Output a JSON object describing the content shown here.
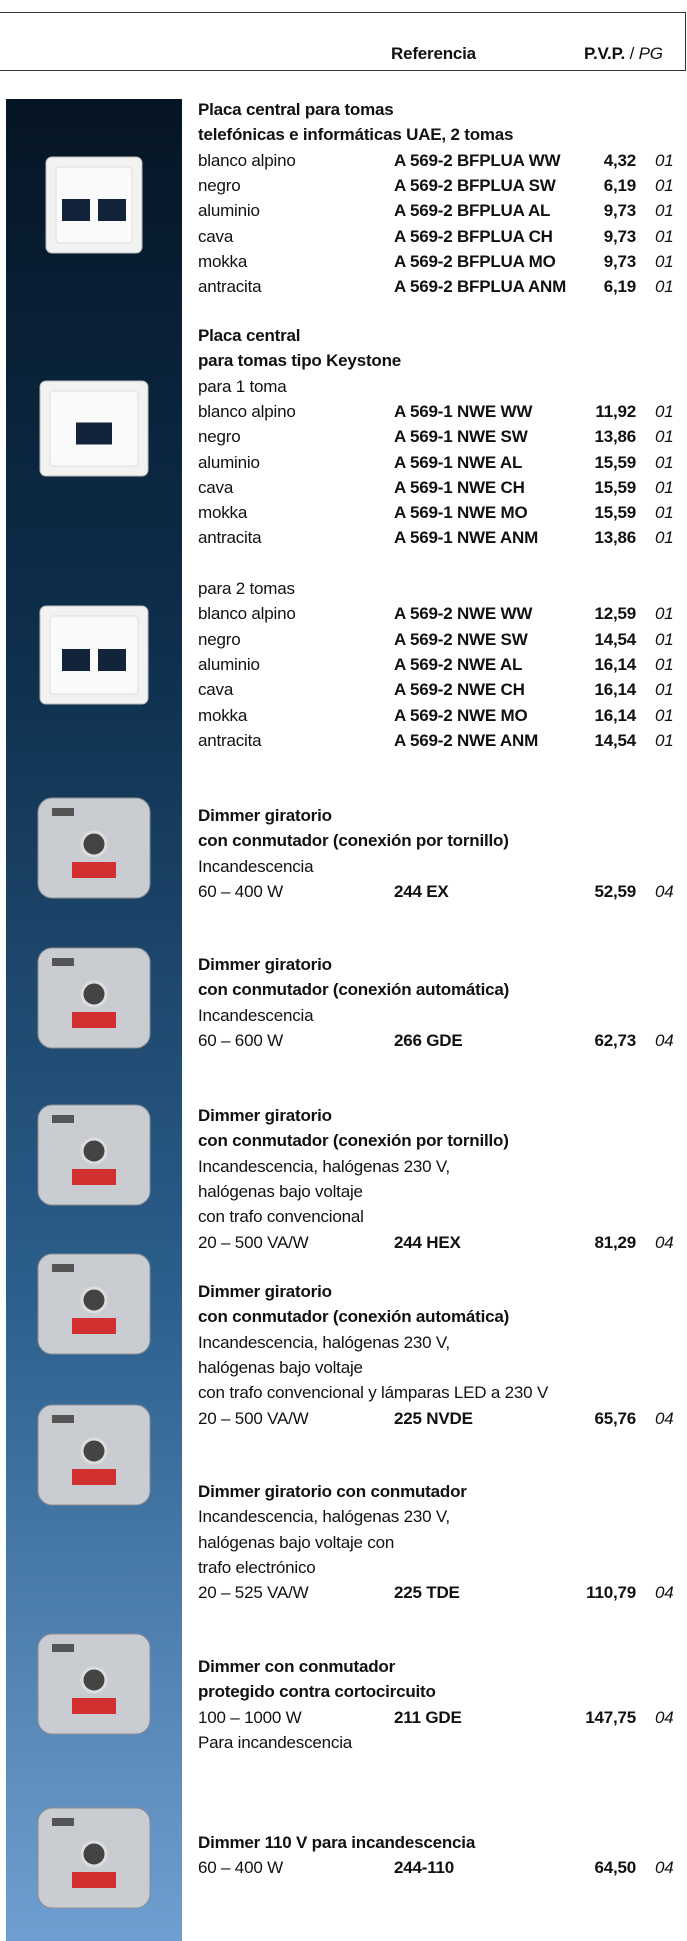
{
  "header": {
    "reference_label": "Referencia",
    "price_label": "P.V.P.",
    "pg_label": "PG"
  },
  "products": [
    {
      "title": [
        "Placa central para tomas",
        "telefónicas e informáticas UAE, 2 tomas"
      ],
      "desc": [],
      "rows": [
        [
          "blanco alpino",
          "A 569-2 BFPLUA WW",
          "4,32",
          "01"
        ],
        [
          "negro",
          "A 569-2 BFPLUA SW",
          "6,19",
          "01"
        ],
        [
          "aluminio",
          "A 569-2 BFPLUA AL",
          "9,73",
          "01"
        ],
        [
          "cava",
          "A 569-2 BFPLUA CH",
          "9,73",
          "01"
        ],
        [
          "mokka",
          "A 569-2 BFPLUA MO",
          "9,73",
          "01"
        ],
        [
          "antracita",
          "A 569-2 BFPLUA ANM",
          "6,19",
          "01"
        ]
      ],
      "note": []
    },
    {
      "title": [
        "Placa central",
        "para tomas tipo Keystone"
      ],
      "desc": [
        "para 1 toma"
      ],
      "rows": [
        [
          "blanco alpino",
          "A 569-1 NWE WW",
          "11,92",
          "01"
        ],
        [
          "negro",
          "A 569-1 NWE SW",
          "13,86",
          "01"
        ],
        [
          "aluminio",
          "A 569-1 NWE AL",
          "15,59",
          "01"
        ],
        [
          "cava",
          "A 569-1 NWE CH",
          "15,59",
          "01"
        ],
        [
          "mokka",
          "A 569-1 NWE MO",
          "15,59",
          "01"
        ],
        [
          "antracita",
          "A 569-1 NWE ANM",
          "13,86",
          "01"
        ]
      ],
      "note": []
    },
    {
      "title": [],
      "desc": [
        "para 2 tomas"
      ],
      "rows": [
        [
          "blanco alpino",
          "A 569-2 NWE WW",
          "12,59",
          "01"
        ],
        [
          "negro",
          "A 569-2 NWE SW",
          "14,54",
          "01"
        ],
        [
          "aluminio",
          "A 569-2 NWE AL",
          "16,14",
          "01"
        ],
        [
          "cava",
          "A 569-2 NWE CH",
          "16,14",
          "01"
        ],
        [
          "mokka",
          "A 569-2 NWE MO",
          "16,14",
          "01"
        ],
        [
          "antracita",
          "A 569-2 NWE ANM",
          "14,54",
          "01"
        ]
      ],
      "note": []
    },
    {
      "title": [
        "Dimmer giratorio",
        "con conmutador (conexión por tornillo)"
      ],
      "desc": [
        "Incandescencia"
      ],
      "rows": [
        [
          "60 – 400 W",
          "244 EX",
          "52,59",
          "04"
        ]
      ],
      "note": []
    },
    {
      "title": [
        "Dimmer giratorio",
        "con conmutador (conexión automática)"
      ],
      "desc": [
        "Incandescencia"
      ],
      "rows": [
        [
          "60 – 600 W",
          "266 GDE",
          "62,73",
          "04"
        ]
      ],
      "note": []
    },
    {
      "title": [
        "Dimmer giratorio",
        "con conmutador (conexión por tornillo)"
      ],
      "desc": [
        "Incandescencia, halógenas 230 V,",
        "halógenas bajo voltaje",
        "con trafo convencional"
      ],
      "rows": [
        [
          "20 – 500 VA/W",
          "244 HEX",
          "81,29",
          "04"
        ]
      ],
      "note": []
    },
    {
      "title": [
        "Dimmer giratorio",
        "con conmutador (conexión automática)"
      ],
      "desc": [
        "Incandescencia, halógenas 230 V,",
        "halógenas bajo voltaje",
        "con trafo convencional y lámparas LED a 230 V"
      ],
      "rows": [
        [
          "20 – 500 VA/W",
          "225 NVDE",
          "65,76",
          "04"
        ]
      ],
      "note": []
    },
    {
      "title": [
        "Dimmer giratorio con conmutador"
      ],
      "desc": [
        "Incandescencia, halógenas 230 V,",
        "halógenas bajo voltaje con",
        "trafo electrónico"
      ],
      "rows": [
        [
          "20 – 525 VA/W",
          "225 TDE",
          "110,79",
          "04"
        ]
      ],
      "note": []
    },
    {
      "title": [
        "Dimmer con conmutador",
        "protegido contra cortocircuito"
      ],
      "desc": [],
      "rows": [
        [
          "100 – 1000 W",
          "211 GDE",
          "147,75",
          "04"
        ]
      ],
      "note": [
        "Para incandescencia"
      ]
    },
    {
      "title": [
        "Dimmer 110 V para incandescencia"
      ],
      "desc": [],
      "rows": [
        [
          "60 – 400 W",
          "244-110",
          "64,50",
          "04"
        ]
      ],
      "note": []
    }
  ]
}
